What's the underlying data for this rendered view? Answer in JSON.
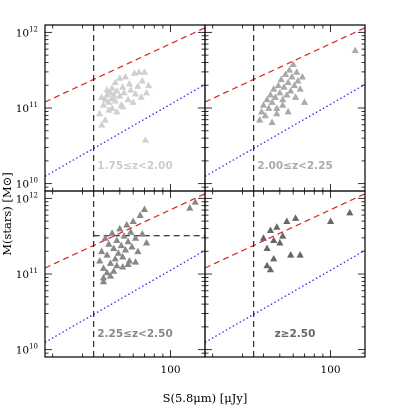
{
  "figure": {
    "xlabel": "S(5.8μm) [μJy]",
    "ylabel": "M(stars) [M⊙]",
    "x_tick_labels": [
      "100"
    ],
    "y_tick_labels": [
      {
        "base": "10",
        "exp": "12"
      },
      {
        "base": "10",
        "exp": "11"
      },
      {
        "base": "10",
        "exp": "10"
      }
    ]
  },
  "chart_data": [
    {
      "type": "scatter",
      "panel_label": "1.75≤z<2.00",
      "label_color": "#cccccc",
      "marker_color": "#d0d0d0",
      "x_scale": "log",
      "y_scale": "log",
      "xlim": [
        18,
        160
      ],
      "ylim": [
        8000000000.0,
        1250000000000.0
      ],
      "cut_x": 35,
      "points": [
        [
          39,
          140000000000.0
        ],
        [
          40,
          110000000000.0
        ],
        [
          41,
          130000000000.0
        ],
        [
          42,
          175000000000.0
        ],
        [
          42,
          150000000000.0
        ],
        [
          43,
          120000000000.0
        ],
        [
          44,
          160000000000.0
        ],
        [
          45,
          135000000000.0
        ],
        [
          45,
          185000000000.0
        ],
        [
          46,
          150000000000.0
        ],
        [
          47,
          220000000000.0
        ],
        [
          47,
          125000000000.0
        ],
        [
          48,
          170000000000.0
        ],
        [
          50,
          145000000000.0
        ],
        [
          50,
          250000000000.0
        ],
        [
          51,
          110000000000.0
        ],
        [
          52,
          190000000000.0
        ],
        [
          53,
          160000000000.0
        ],
        [
          54,
          260000000000.0
        ],
        [
          56,
          130000000000.0
        ],
        [
          57,
          210000000000.0
        ],
        [
          58,
          175000000000.0
        ],
        [
          60,
          120000000000.0
        ],
        [
          61,
          290000000000.0
        ],
        [
          62,
          155000000000.0
        ],
        [
          64,
          195000000000.0
        ],
        [
          65,
          300000000000.0
        ],
        [
          67,
          140000000000.0
        ],
        [
          68,
          230000000000.0
        ],
        [
          70,
          300000000000.0
        ],
        [
          72,
          160000000000.0
        ],
        [
          74,
          200000000000.0
        ],
        [
          38,
          85000000000.0
        ],
        [
          39,
          60000000000.0
        ],
        [
          41,
          70000000000.0
        ],
        [
          43,
          95000000000.0
        ],
        [
          45,
          100000000000.0
        ],
        [
          48,
          90000000000.0
        ],
        [
          52,
          105000000000.0
        ],
        [
          71,
          38000000000.0
        ]
      ],
      "red_line": {
        "x": [
          18,
          160
        ],
        "y": [
          120000000000.0,
          1150000000000.0
        ]
      },
      "blue_line": {
        "x": [
          18,
          160
        ],
        "y": [
          12500000000.0,
          205000000000.0
        ]
      }
    },
    {
      "type": "scatter",
      "panel_label": "2.00≤z<2.25",
      "label_color": "#aaaaaa",
      "marker_color": "#aaaaaa",
      "x_scale": "log",
      "y_scale": "log",
      "xlim": [
        18,
        160
      ],
      "ylim": [
        8000000000.0,
        1250000000000.0
      ],
      "cut_x": 35,
      "points": [
        [
          38,
          70000000000.0
        ],
        [
          39,
          90000000000.0
        ],
        [
          40,
          110000000000.0
        ],
        [
          41,
          80000000000.0
        ],
        [
          42,
          130000000000.0
        ],
        [
          43,
          100000000000.0
        ],
        [
          44,
          150000000000.0
        ],
        [
          45,
          120000000000.0
        ],
        [
          46,
          180000000000.0
        ],
        [
          47,
          140000000000.0
        ],
        [
          48,
          100000000000.0
        ],
        [
          49,
          200000000000.0
        ],
        [
          50,
          160000000000.0
        ],
        [
          51,
          240000000000.0
        ],
        [
          52,
          130000000000.0
        ],
        [
          53,
          190000000000.0
        ],
        [
          54,
          280000000000.0
        ],
        [
          55,
          150000000000.0
        ],
        [
          56,
          220000000000.0
        ],
        [
          57,
          320000000000.0
        ],
        [
          58,
          170000000000.0
        ],
        [
          59,
          260000000000.0
        ],
        [
          60,
          380000000000.0
        ],
        [
          61,
          200000000000.0
        ],
        [
          62,
          140000000000.0
        ],
        [
          63,
          300000000000.0
        ],
        [
          64,
          230000000000.0
        ],
        [
          66,
          180000000000.0
        ],
        [
          68,
          260000000000.0
        ],
        [
          70,
          120000000000.0
        ],
        [
          45,
          65000000000.0
        ],
        [
          48,
          85000000000.0
        ],
        [
          52,
          110000000000.0
        ],
        [
          56,
          90000000000.0
        ],
        [
          140,
          580000000000.0
        ]
      ],
      "red_line": {
        "x": [
          18,
          160
        ],
        "y": [
          120000000000.0,
          1150000000000.0
        ]
      },
      "blue_line": {
        "x": [
          18,
          160
        ],
        "y": [
          12500000000.0,
          205000000000.0
        ]
      }
    },
    {
      "type": "scatter",
      "panel_label": "2.25≤z<2.50",
      "label_color": "#888888",
      "marker_color": "#888888",
      "x_scale": "log",
      "y_scale": "log",
      "xlim": [
        18,
        160
      ],
      "ylim": [
        8000000000.0,
        1250000000000.0
      ],
      "cut_x": 35,
      "black_box": {
        "x": [
          35,
          160
        ],
        "y": [
          120000000000.0,
          320000000000.0
        ]
      },
      "points": [
        [
          38,
          150000000000.0
        ],
        [
          39,
          200000000000.0
        ],
        [
          40,
          120000000000.0
        ],
        [
          41,
          300000000000.0
        ],
        [
          42,
          180000000000.0
        ],
        [
          43,
          250000000000.0
        ],
        [
          44,
          140000000000.0
        ],
        [
          45,
          350000000000.0
        ],
        [
          46,
          220000000000.0
        ],
        [
          47,
          160000000000.0
        ],
        [
          48,
          280000000000.0
        ],
        [
          49,
          190000000000.0
        ],
        [
          50,
          400000000000.0
        ],
        [
          51,
          240000000000.0
        ],
        [
          52,
          170000000000.0
        ],
        [
          53,
          320000000000.0
        ],
        [
          54,
          210000000000.0
        ],
        [
          55,
          450000000000.0
        ],
        [
          56,
          270000000000.0
        ],
        [
          57,
          150000000000.0
        ],
        [
          58,
          360000000000.0
        ],
        [
          59,
          230000000000.0
        ],
        [
          60,
          500000000000.0
        ],
        [
          62,
          300000000000.0
        ],
        [
          64,
          200000000000.0
        ],
        [
          66,
          600000000000.0
        ],
        [
          68,
          340000000000.0
        ],
        [
          70,
          720000000000.0
        ],
        [
          72,
          260000000000.0
        ],
        [
          40,
          90000000000.0
        ],
        [
          42,
          105000000000.0
        ],
        [
          44,
          95000000000.0
        ],
        [
          46,
          110000000000.0
        ],
        [
          48,
          130000000000.0
        ],
        [
          52,
          125000000000.0
        ],
        [
          56,
          135000000000.0
        ],
        [
          62,
          145000000000.0
        ],
        [
          40,
          80000000000.0
        ],
        [
          130,
          750000000000.0
        ],
        [
          140,
          900000000000.0
        ]
      ],
      "red_line": {
        "x": [
          18,
          160
        ],
        "y": [
          120000000000.0,
          1150000000000.0
        ]
      },
      "blue_line": {
        "x": [
          18,
          160
        ],
        "y": [
          12500000000.0,
          205000000000.0
        ]
      }
    },
    {
      "type": "scatter",
      "panel_label": "z≥2.50",
      "label_color": "#666666",
      "marker_color": "#666666",
      "x_scale": "log",
      "y_scale": "log",
      "xlim": [
        18,
        160
      ],
      "ylim": [
        8000000000.0,
        1250000000000.0
      ],
      "cut_x": 35,
      "points": [
        [
          40,
          300000000000.0
        ],
        [
          42,
          220000000000.0
        ],
        [
          44,
          380000000000.0
        ],
        [
          46,
          160000000000.0
        ],
        [
          48,
          420000000000.0
        ],
        [
          50,
          260000000000.0
        ],
        [
          52,
          320000000000.0
        ],
        [
          55,
          500000000000.0
        ],
        [
          58,
          180000000000.0
        ],
        [
          62,
          550000000000.0
        ],
        [
          46,
          280000000000.0
        ],
        [
          42,
          130000000000.0
        ],
        [
          44,
          115000000000.0
        ],
        [
          66,
          180000000000.0
        ],
        [
          100,
          500000000000.0
        ],
        [
          130,
          650000000000.0
        ]
      ],
      "red_line": {
        "x": [
          18,
          160
        ],
        "y": [
          120000000000.0,
          1150000000000.0
        ]
      },
      "blue_line": {
        "x": [
          18,
          160
        ],
        "y": [
          12500000000.0,
          205000000000.0
        ]
      }
    }
  ]
}
